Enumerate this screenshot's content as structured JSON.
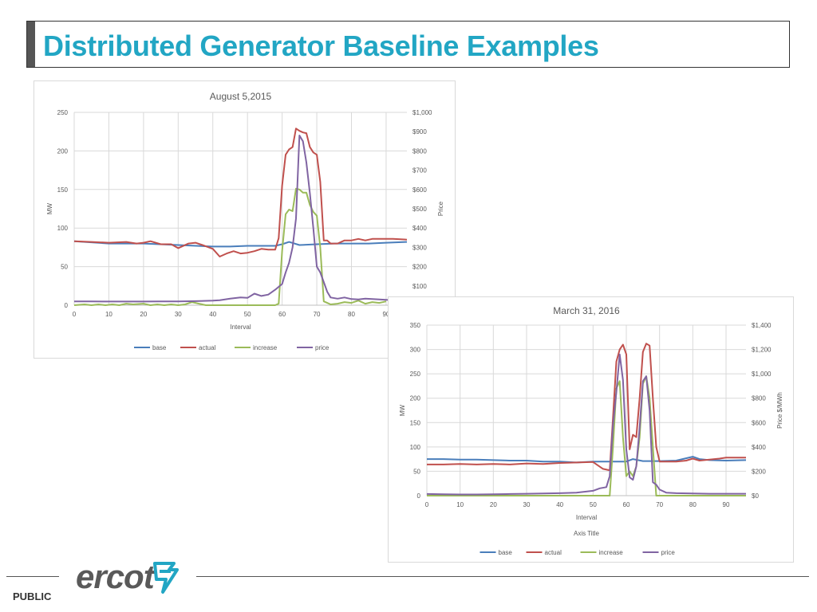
{
  "slide": {
    "title": "Distributed Generator Baseline Examples",
    "logo_text": "ercot",
    "classification": "PUBLIC"
  },
  "colors": {
    "title": "#22a6c4",
    "base": "#4a7ebb",
    "actual": "#c0504d",
    "increase": "#9bbb59",
    "price": "#8064a2",
    "logo_mark": "#22a6c4"
  },
  "chart_data": [
    {
      "type": "line",
      "title": "August 5,2015",
      "xlabel": "Interval",
      "ylabel": "MW",
      "y2label": "Price",
      "xlim": [
        0,
        96
      ],
      "ylim": [
        0,
        250
      ],
      "y2lim": [
        0,
        1000
      ],
      "xticks": [
        "0",
        "10",
        "20",
        "30",
        "40",
        "50",
        "60",
        "70",
        "80",
        "90"
      ],
      "yticks": [
        "0",
        "50",
        "100",
        "150",
        "200",
        "250"
      ],
      "y2ticks": [
        "$100",
        "$200",
        "$300",
        "$400",
        "$500",
        "$600",
        "$700",
        "$800",
        "$900",
        "$1,000"
      ],
      "legend_position": "bottom",
      "grid": true,
      "series": [
        {
          "name": "base",
          "axis": "left",
          "x": [
            0,
            10,
            20,
            30,
            40,
            45,
            50,
            55,
            58,
            60,
            62,
            65,
            70,
            75,
            80,
            85,
            90,
            96
          ],
          "y": [
            83,
            80,
            80,
            78,
            76,
            76,
            77,
            77,
            77,
            79,
            82,
            78,
            79,
            80,
            80,
            80,
            81,
            82
          ]
        },
        {
          "name": "actual",
          "axis": "left",
          "x": [
            0,
            5,
            10,
            15,
            18,
            20,
            22,
            25,
            28,
            30,
            33,
            35,
            37,
            40,
            42,
            44,
            46,
            48,
            50,
            52,
            54,
            56,
            58,
            59,
            60,
            61,
            62,
            63,
            64,
            65,
            66,
            67,
            68,
            69,
            70,
            71,
            72,
            73,
            74,
            76,
            78,
            80,
            82,
            84,
            86,
            88,
            90,
            92,
            96
          ],
          "y": [
            83,
            82,
            81,
            82,
            80,
            81,
            83,
            79,
            79,
            74,
            80,
            81,
            78,
            73,
            63,
            67,
            70,
            67,
            68,
            70,
            73,
            72,
            72,
            87,
            155,
            195,
            202,
            205,
            229,
            226,
            224,
            223,
            205,
            198,
            195,
            160,
            84,
            84,
            80,
            80,
            84,
            84,
            86,
            84,
            86,
            86,
            86,
            86,
            85
          ]
        },
        {
          "name": "increase",
          "axis": "left",
          "x": [
            0,
            3,
            5,
            7,
            9,
            11,
            13,
            15,
            17,
            20,
            22,
            24,
            26,
            28,
            30,
            32,
            34,
            36,
            38,
            40,
            42,
            44,
            46,
            48,
            50,
            52,
            54,
            56,
            58,
            59,
            60,
            61,
            62,
            63,
            64,
            65,
            66,
            67,
            68,
            69,
            70,
            71,
            72,
            73,
            74,
            76,
            78,
            80,
            82,
            84,
            86,
            88,
            90
          ],
          "y": [
            0,
            1,
            0,
            1,
            0,
            1,
            0,
            2,
            1,
            2,
            0,
            1,
            0,
            1,
            0,
            1,
            4,
            2,
            0,
            0,
            0,
            0,
            0,
            0,
            0,
            0,
            0,
            0,
            0,
            2,
            70,
            118,
            124,
            122,
            151,
            150,
            146,
            146,
            130,
            121,
            116,
            75,
            5,
            3,
            1,
            2,
            4,
            3,
            6,
            2,
            4,
            3,
            5
          ]
        },
        {
          "name": "price",
          "axis": "right",
          "x": [
            0,
            5,
            10,
            15,
            20,
            25,
            30,
            35,
            40,
            42,
            45,
            48,
            50,
            52,
            54,
            56,
            58,
            60,
            61,
            62,
            63,
            64,
            65,
            66,
            67,
            68,
            69,
            70,
            71,
            72,
            73,
            74,
            76,
            78,
            80,
            82,
            84,
            86,
            88,
            90,
            92,
            96
          ],
          "y": [
            20,
            20,
            19,
            19,
            19,
            20,
            20,
            21,
            24,
            26,
            34,
            40,
            38,
            60,
            48,
            55,
            80,
            110,
            170,
            220,
            300,
            450,
            880,
            850,
            740,
            580,
            400,
            200,
            170,
            120,
            70,
            40,
            34,
            40,
            32,
            30,
            34,
            32,
            30,
            28,
            26,
            24
          ]
        }
      ]
    },
    {
      "type": "line",
      "title": "March 31, 2016",
      "xlabel": "Interval",
      "subtitle": "Axis Title",
      "ylabel": "MW",
      "y2label": "Price $/MWh",
      "xlim": [
        0,
        96
      ],
      "ylim": [
        0,
        350
      ],
      "y2lim": [
        0,
        1400
      ],
      "xticks": [
        "0",
        "10",
        "20",
        "30",
        "40",
        "50",
        "60",
        "70",
        "80",
        "90"
      ],
      "yticks": [
        "0",
        "50",
        "100",
        "150",
        "200",
        "250",
        "300",
        "350"
      ],
      "y2ticks": [
        "$0",
        "$200",
        "$400",
        "$600",
        "$800",
        "$1,000",
        "$1,200",
        "$1,400"
      ],
      "legend_position": "bottom",
      "grid": true,
      "series": [
        {
          "name": "base",
          "axis": "left",
          "x": [
            0,
            5,
            10,
            15,
            20,
            25,
            30,
            35,
            40,
            45,
            50,
            55,
            58,
            60,
            62,
            65,
            70,
            75,
            80,
            82,
            85,
            90,
            96
          ],
          "y": [
            75,
            75,
            74,
            74,
            73,
            72,
            72,
            70,
            70,
            68,
            70,
            70,
            70,
            70,
            75,
            71,
            71,
            72,
            80,
            75,
            73,
            72,
            73
          ]
        },
        {
          "name": "actual",
          "axis": "left",
          "x": [
            0,
            5,
            10,
            15,
            20,
            25,
            30,
            35,
            40,
            45,
            50,
            53,
            55,
            56,
            57,
            58,
            59,
            60,
            61,
            62,
            63,
            64,
            65,
            66,
            67,
            68,
            69,
            70,
            72,
            75,
            78,
            80,
            82,
            85,
            88,
            90,
            96
          ],
          "y": [
            64,
            64,
            65,
            64,
            65,
            64,
            66,
            65,
            67,
            68,
            69,
            55,
            52,
            160,
            275,
            300,
            310,
            290,
            95,
            125,
            120,
            200,
            295,
            312,
            308,
            200,
            100,
            70,
            70,
            70,
            72,
            76,
            72,
            74,
            76,
            78,
            78
          ]
        },
        {
          "name": "increase",
          "axis": "left",
          "x": [
            0,
            30,
            40,
            45,
            50,
            54,
            55,
            56,
            57,
            58,
            59,
            60,
            61,
            62,
            63,
            64,
            65,
            66,
            67,
            68,
            69,
            70,
            72,
            75,
            78,
            80,
            85,
            90,
            96
          ],
          "y": [
            0,
            0,
            0,
            0,
            0,
            0,
            0,
            100,
            220,
            235,
            120,
            40,
            50,
            40,
            60,
            120,
            230,
            245,
            200,
            100,
            0,
            0,
            0,
            0,
            0,
            0,
            0,
            0,
            0
          ]
        },
        {
          "name": "price",
          "axis": "right",
          "x": [
            0,
            5,
            10,
            15,
            20,
            25,
            30,
            35,
            40,
            45,
            50,
            52,
            54,
            55,
            56,
            57,
            58,
            59,
            60,
            61,
            62,
            63,
            64,
            65,
            66,
            67,
            68,
            69,
            70,
            72,
            75,
            80,
            85,
            90,
            96
          ],
          "y": [
            14,
            12,
            10,
            10,
            12,
            14,
            16,
            18,
            20,
            25,
            40,
            60,
            70,
            160,
            580,
            850,
            1160,
            950,
            380,
            150,
            130,
            240,
            560,
            940,
            980,
            700,
            110,
            90,
            50,
            25,
            20,
            18,
            16,
            16,
            16
          ]
        }
      ]
    }
  ]
}
